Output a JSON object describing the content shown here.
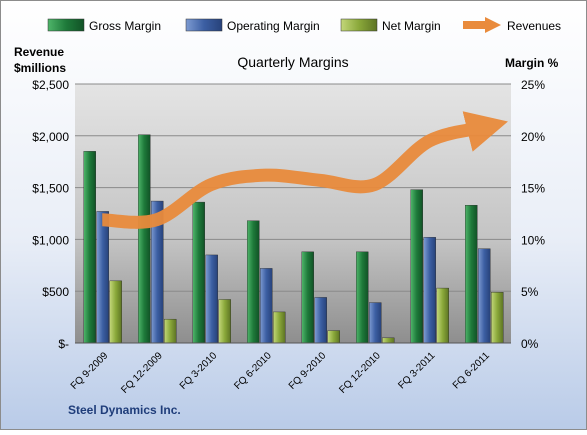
{
  "chart_data": {
    "type": "bar",
    "title": "Quarterly Margins",
    "left_axis_title": [
      "Revenue",
      "$millions"
    ],
    "right_axis_title": "Margin %",
    "footer": "Steel Dynamics Inc.",
    "categories": [
      "FQ 9-2009",
      "FQ 12-2009",
      "FQ 3-2010",
      "FQ 6-2010",
      "FQ 9-2010",
      "FQ 12-2010",
      "FQ 3-2011",
      "FQ 6-2011"
    ],
    "left_ylim": [
      0,
      2500
    ],
    "left_ticks": [
      "$-",
      "$500",
      "$1,000",
      "$1,500",
      "$2,000",
      "$2,500"
    ],
    "right_ylim": [
      0,
      25
    ],
    "right_ticks": [
      "0%",
      "5%",
      "10%",
      "15%",
      "20%",
      "25%"
    ],
    "grid": true,
    "legend_position": "top",
    "series": [
      {
        "name": "Gross Margin",
        "kind": "bar",
        "axis": "right",
        "color": "#1e7a3a",
        "values": [
          18.5,
          20.1,
          13.6,
          11.8,
          8.8,
          8.8,
          14.8,
          13.3
        ]
      },
      {
        "name": "Operating Margin",
        "kind": "bar",
        "axis": "right",
        "color": "#3c5fa3",
        "values": [
          12.7,
          13.7,
          8.5,
          7.2,
          4.4,
          3.9,
          10.2,
          9.1
        ]
      },
      {
        "name": "Net Margin",
        "kind": "bar",
        "axis": "right",
        "color": "#8aa83a",
        "values": [
          6.0,
          2.3,
          4.2,
          3.0,
          1.2,
          0.5,
          5.3,
          4.9
        ]
      },
      {
        "name": "Revenues",
        "kind": "line",
        "axis": "left",
        "color": "#e98b3c",
        "values": [
          1190,
          1190,
          1530,
          1620,
          1570,
          1530,
          1950,
          2080
        ]
      }
    ]
  }
}
